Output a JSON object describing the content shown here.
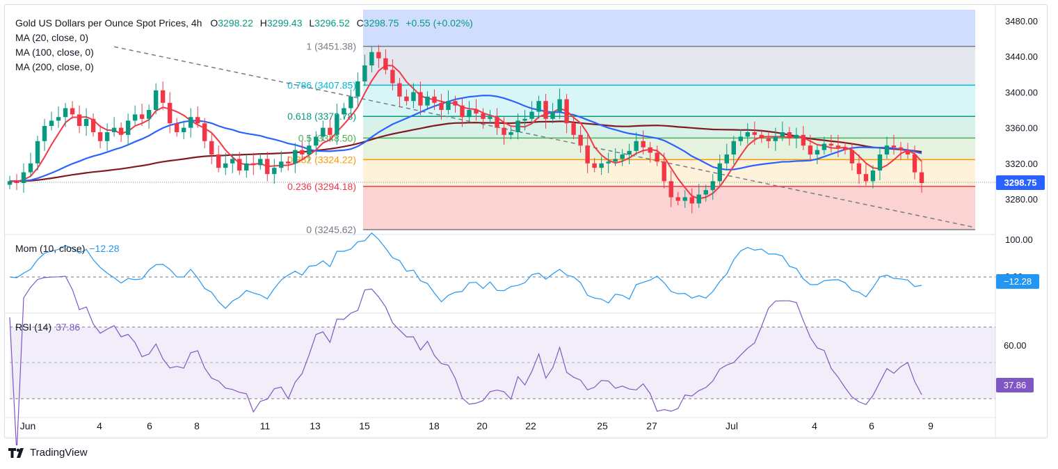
{
  "header": {
    "title": "Gold US Dollars per Ounce Spot Prices, 4h",
    "open_label": "O",
    "open": "3298.22",
    "high_label": "H",
    "high": "3299.43",
    "low_label": "L",
    "low": "3296.52",
    "close_label": "C",
    "close": "3298.75",
    "change": "+0.55 (+0.02%)"
  },
  "indicators": {
    "ma20": "MA (20, close, 0)",
    "ma100": "MA (100, close, 0)",
    "ma200": "MA (200, close, 0)"
  },
  "momentum": {
    "label": "Mom (10, close)",
    "value": "−12.28",
    "axis_top": "100.00",
    "axis_zero": "0.00"
  },
  "rsi": {
    "label": "RSI (14)",
    "value": "37.86",
    "axis_label": "60.00"
  },
  "price_axis": [
    "3480.00",
    "3440.00",
    "3400.00",
    "3360.00",
    "3320.00",
    "3280.00"
  ],
  "last_price_tag": "3298.75",
  "branding": {
    "name": "TradingView"
  },
  "colors": {
    "up": "#089981",
    "down": "#f23645",
    "ma20": "#f23645",
    "ma100": "#2962ff",
    "ma200": "#801922",
    "momentum": "#2196f3",
    "rsi": "#7e57c2",
    "tag_blue": "#2962ff",
    "tag_purple": "#7e57c2"
  },
  "chart_data": {
    "type": "candlestick",
    "title": "Gold US Dollars per Ounce Spot Prices, 4h",
    "ylim": [
      3240,
      3490
    ],
    "x_tick_labels": [
      "Jun",
      "4",
      "6",
      "8",
      "11",
      "13",
      "15",
      "18",
      "20",
      "22",
      "25",
      "27",
      "Jul",
      "4",
      "6",
      "9"
    ],
    "fibonacci": [
      {
        "level": "1",
        "price": 3451.38,
        "label": "1 (3451.38)",
        "color": "#787b86"
      },
      {
        "level": "0.786",
        "price": 3407.85,
        "label": "0.786 (3407.85)",
        "color": "#00bcd4"
      },
      {
        "level": "0.618",
        "price": 3372.78,
        "label": "0.618 (3372.78)",
        "color": "#089981"
      },
      {
        "level": "0.5",
        "price": 3348.5,
        "label": "0.5 (3348.50)",
        "color": "#4caf50"
      },
      {
        "level": "0.382",
        "price": 3324.22,
        "label": "0.382 (3324.22)",
        "color": "#ff9800"
      },
      {
        "level": "0.236",
        "price": 3294.18,
        "label": "0.236 (3294.18)",
        "color": "#f23645"
      },
      {
        "level": "0",
        "price": 3245.62,
        "label": "0 (3245.62)",
        "color": "#787b86"
      }
    ],
    "trendline": {
      "from": [
        15,
        3451
      ],
      "to": [
        104,
        3248
      ]
    },
    "closes": [
      3300,
      3298,
      3310,
      3320,
      3345,
      3362,
      3368,
      3372,
      3382,
      3375,
      3362,
      3370,
      3355,
      3345,
      3355,
      3360,
      3352,
      3368,
      3375,
      3370,
      3380,
      3402,
      3388,
      3365,
      3355,
      3360,
      3372,
      3365,
      3345,
      3330,
      3315,
      3320,
      3325,
      3312,
      3320,
      3318,
      3325,
      3308,
      3315,
      3322,
      3320,
      3335,
      3330,
      3340,
      3350,
      3360,
      3352,
      3375,
      3382,
      3395,
      3412,
      3430,
      3445,
      3438,
      3425,
      3410,
      3395,
      3390,
      3400,
      3385,
      3395,
      3388,
      3380,
      3390,
      3385,
      3372,
      3380,
      3376,
      3370,
      3372,
      3360,
      3352,
      3355,
      3368,
      3370,
      3378,
      3390,
      3370,
      3378,
      3392,
      3365,
      3352,
      3340,
      3320,
      3315,
      3320,
      3322,
      3325,
      3330,
      3334,
      3345,
      3338,
      3332,
      3322,
      3300,
      3282,
      3278,
      3282,
      3275,
      3285,
      3290,
      3300,
      3320,
      3330,
      3345,
      3350,
      3355,
      3352,
      3348,
      3345,
      3350,
      3355,
      3348,
      3352,
      3340,
      3330,
      3335,
      3342,
      3340,
      3338,
      3335,
      3320,
      3308,
      3300,
      3312,
      3330,
      3340,
      3338,
      3335,
      3330,
      3310,
      3298
    ],
    "ma20": {
      "start": 3300,
      "peak": 3408,
      "end": 3325
    },
    "ma100": {
      "start": 3275,
      "peak": 3372,
      "end": 3343
    },
    "ma200": {
      "start": 3302,
      "end": 3342
    }
  }
}
